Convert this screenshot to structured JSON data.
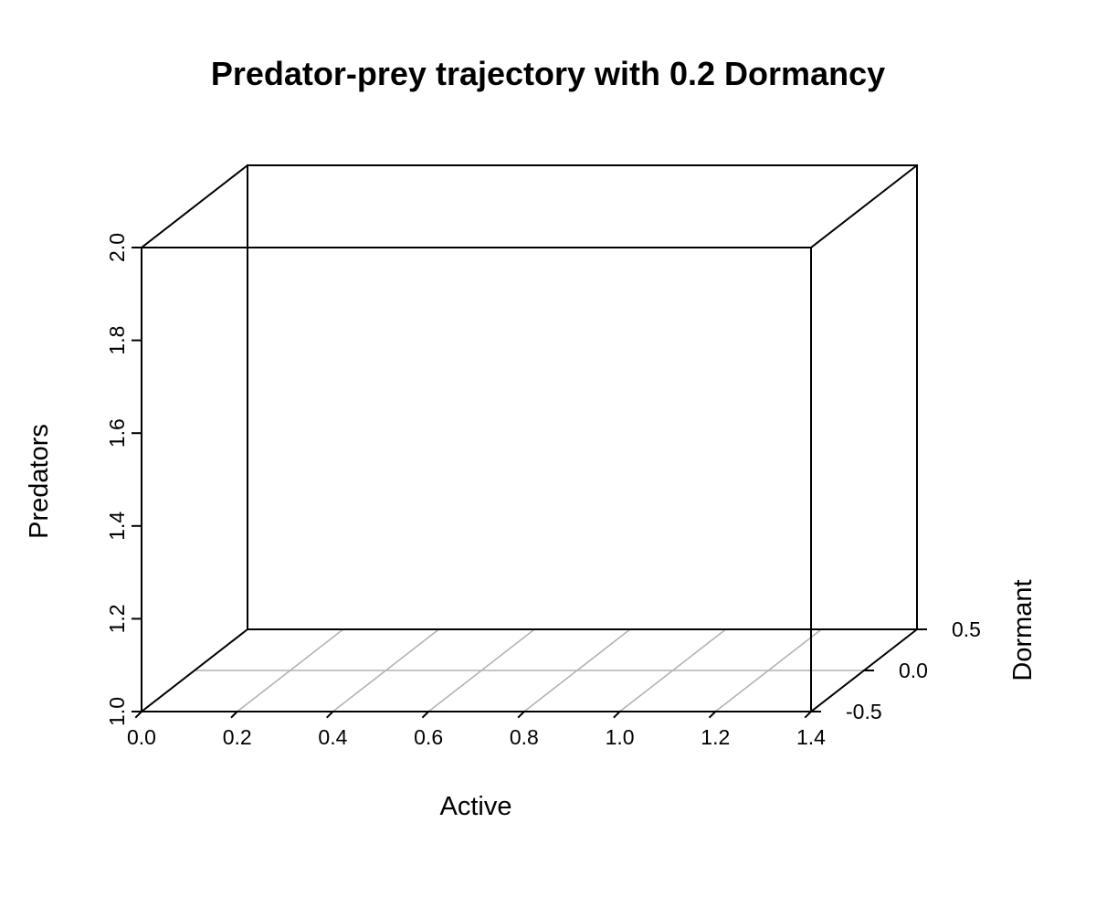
{
  "chart_data": {
    "type": "scatter",
    "projection": "3d-box",
    "title": "Predator-prey trajectory with 0.2 Dormancy",
    "xlabel": "Active",
    "ylabel": "Dormant",
    "zlabel": "Predators",
    "xlim": [
      0.0,
      1.4
    ],
    "ylim": [
      -0.5,
      0.5
    ],
    "zlim": [
      1.0,
      2.0
    ],
    "x_ticks": [
      "0.0",
      "0.2",
      "0.4",
      "0.6",
      "0.8",
      "1.0",
      "1.2",
      "1.4"
    ],
    "y_ticks": [
      "-0.5",
      "0.0",
      "0.5"
    ],
    "z_ticks": [
      "1.0",
      "1.2",
      "1.4",
      "1.6",
      "1.8",
      "2.0"
    ],
    "grid": true,
    "series": [],
    "colors": {
      "box": "#000000",
      "grid": "#b3b3b3",
      "background": "#ffffff"
    }
  }
}
